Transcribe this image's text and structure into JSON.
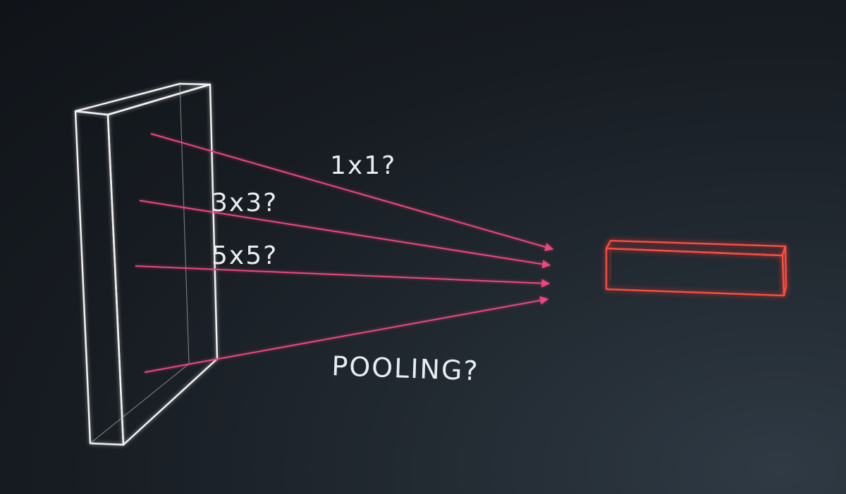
{
  "diagram": {
    "labels": {
      "conv_1x1": "1x1?",
      "conv_3x3": "3x3?",
      "conv_5x5": "5x5?",
      "pooling": "POOLING?"
    },
    "colors": {
      "background": "#14181d",
      "input_block": "#f2f2f2",
      "output_block": "#ff4a3d",
      "arrows": "#f0457e",
      "text": "#e9edf1"
    }
  }
}
